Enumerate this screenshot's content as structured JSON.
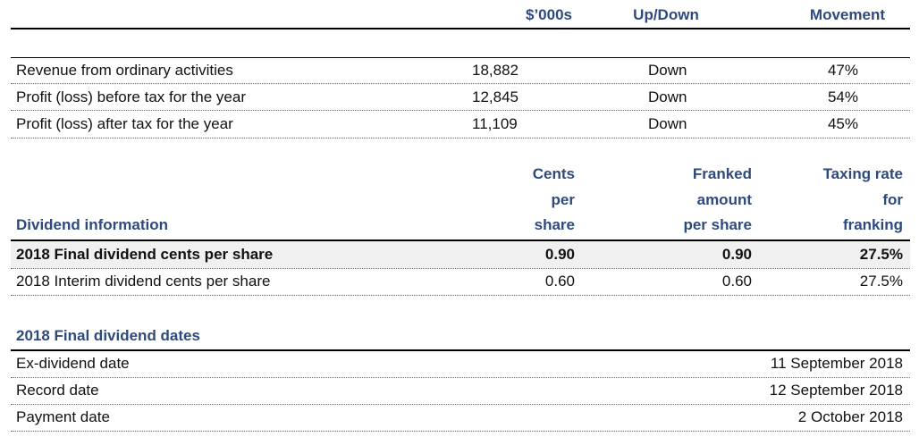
{
  "results": {
    "headers": {
      "amount": "$’000s",
      "direction": "Up/Down",
      "movement": "Movement"
    },
    "rows": [
      {
        "label": "Revenue from ordinary activities",
        "amount": "18,882",
        "direction": "Down",
        "movement": "47%"
      },
      {
        "label": "Profit (loss) before tax for the year",
        "amount": "12,845",
        "direction": "Down",
        "movement": "54%"
      },
      {
        "label": "Profit (loss) after tax for the year",
        "amount": "11,109",
        "direction": "Down",
        "movement": "45%"
      }
    ]
  },
  "dividends": {
    "title": "Dividend information",
    "col_cents": [
      "Cents",
      "per",
      "share"
    ],
    "col_franked": [
      "Franked",
      "amount",
      "per share"
    ],
    "col_rate": [
      "Taxing rate",
      "for",
      "franking"
    ],
    "rows": [
      {
        "label": "2018 Final dividend cents per share",
        "cents": "0.90",
        "franked": "0.90",
        "rate": "27.5%"
      },
      {
        "label": "2018 Interim dividend cents per share",
        "cents": "0.60",
        "franked": "0.60",
        "rate": "27.5%"
      }
    ]
  },
  "dates": {
    "title": "2018 Final dividend dates",
    "rows": [
      {
        "label": "Ex-dividend date",
        "value": "11 September 2018"
      },
      {
        "label": "Record date",
        "value": "12 September 2018"
      },
      {
        "label": "Payment date",
        "value": "2 October 2018"
      }
    ]
  }
}
